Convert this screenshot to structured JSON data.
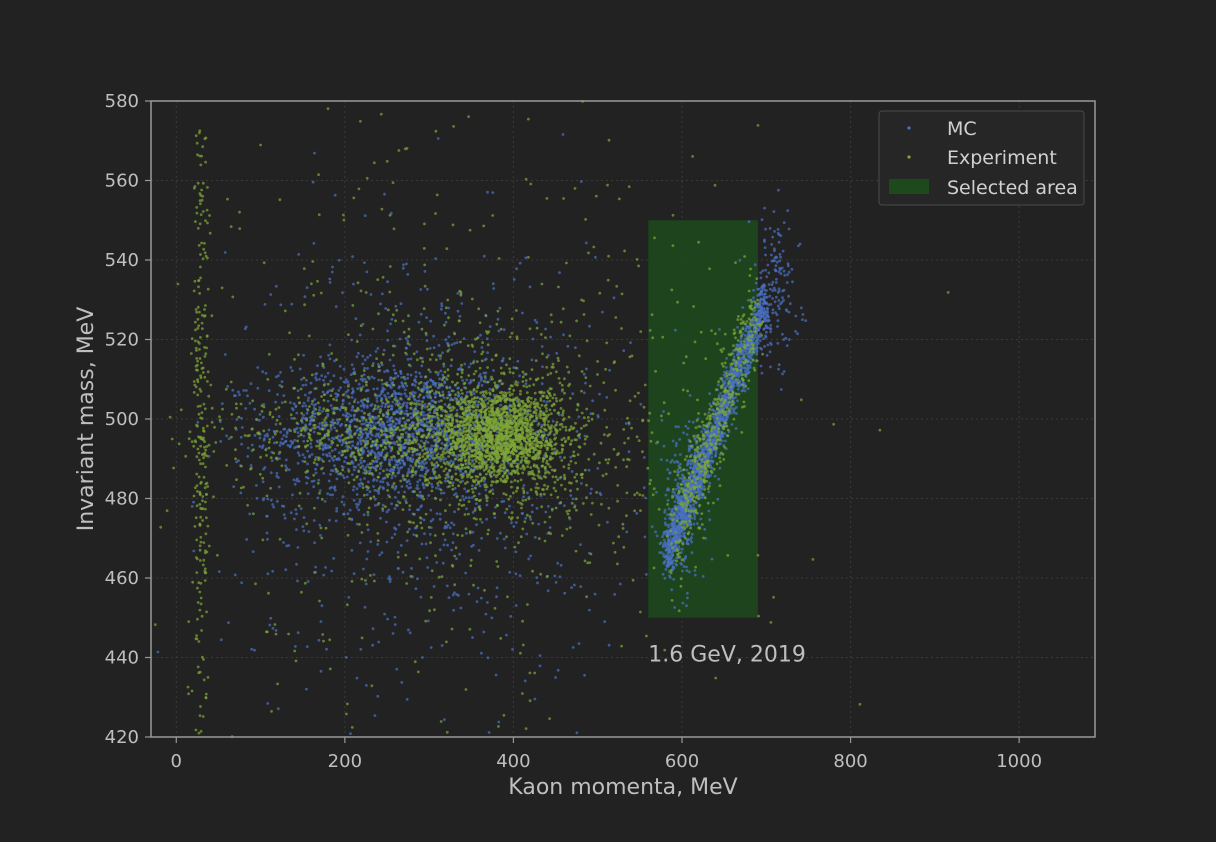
{
  "chart_data": {
    "type": "scatter",
    "title": "",
    "xlabel": "Kaon momenta, MeV",
    "ylabel": "Invariant mass, MeV",
    "xlim": [
      -30,
      1090
    ],
    "ylim": [
      420,
      580
    ],
    "xticks": [
      0,
      200,
      400,
      600,
      800,
      1000
    ],
    "yticks": [
      420,
      440,
      460,
      480,
      500,
      520,
      540,
      560,
      580
    ],
    "grid": true,
    "legend_position": "top-right",
    "annotation": {
      "text": "1.6 GeV, 2019",
      "x": 560,
      "y": 441
    },
    "selected_area": {
      "label": "Selected area",
      "x": [
        560,
        690
      ],
      "y": [
        450,
        550
      ],
      "color": "#1d4a1d"
    },
    "series": [
      {
        "name": "MC",
        "color": "#4a72c4",
        "clusters": [
          {
            "x_mean": 260,
            "y_mean": 497,
            "x_sd": 75,
            "y_sd": 9,
            "count": 1500
          },
          {
            "x_mean": 300,
            "y_mean": 490,
            "x_sd": 120,
            "y_sd": 28,
            "count": 800
          },
          {
            "x_mean": 600,
            "y_mean": 478,
            "x_sd": 14,
            "y_sd": 10,
            "count": 250
          },
          {
            "x_mean": 710,
            "y_mean": 532,
            "x_sd": 15,
            "y_sd": 10,
            "count": 150
          }
        ],
        "line_clusters": [
          {
            "x_start": 580,
            "x_end": 700,
            "y_start": 465,
            "y_end": 530,
            "spread": 3,
            "count": 1600
          }
        ]
      },
      {
        "name": "Experiment",
        "color": "#7fa637",
        "clusters": [
          {
            "x_mean": 385,
            "y_mean": 496,
            "x_sd": 35,
            "y_sd": 6,
            "count": 1500
          },
          {
            "x_mean": 250,
            "y_mean": 496,
            "x_sd": 90,
            "y_sd": 6,
            "count": 500
          },
          {
            "x_mean": 380,
            "y_mean": 495,
            "x_sd": 90,
            "y_sd": 14,
            "count": 800
          },
          {
            "x_mean": 30,
            "y_mean": 495,
            "x_sd": 5,
            "y_sd": 40,
            "count": 250
          },
          {
            "x_mean": 300,
            "y_mean": 500,
            "x_sd": 200,
            "y_sd": 42,
            "count": 500
          }
        ],
        "line_clusters": [
          {
            "x_start": 590,
            "x_end": 690,
            "y_start": 470,
            "y_end": 528,
            "spread": 5,
            "count": 450
          }
        ]
      }
    ]
  }
}
